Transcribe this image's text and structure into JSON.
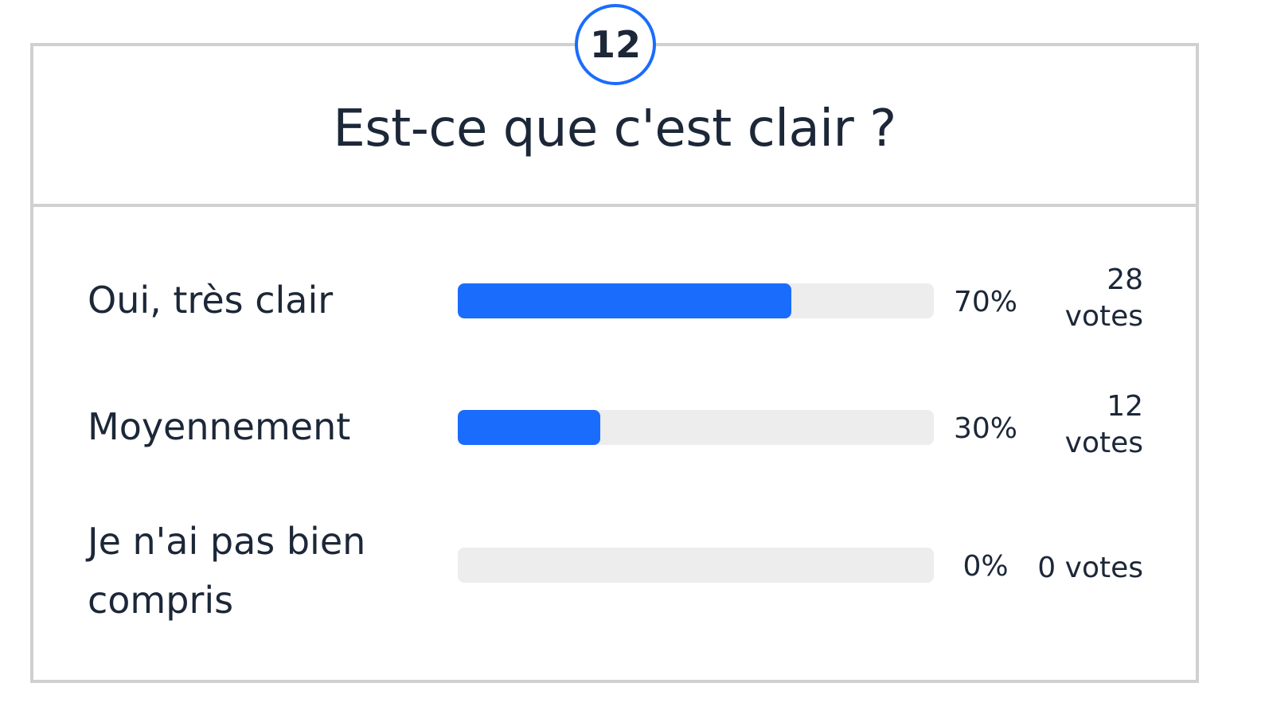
{
  "poll": {
    "count_badge": "12",
    "question": "Est-ce que c'est clair ?",
    "accent_color": "#1a6cfc",
    "track_color": "#ededed",
    "options": [
      {
        "label": "Oui, très clair",
        "percent_label": "70%",
        "percent": 70,
        "votes_count": "28",
        "votes_unit": "votes"
      },
      {
        "label": "Moyennement",
        "percent_label": "30%",
        "percent": 30,
        "votes_count": "12",
        "votes_unit": "votes"
      },
      {
        "label": "Je n'ai pas bien compris",
        "percent_label": "0%",
        "percent": 0,
        "votes_text": "0 votes"
      }
    ]
  }
}
